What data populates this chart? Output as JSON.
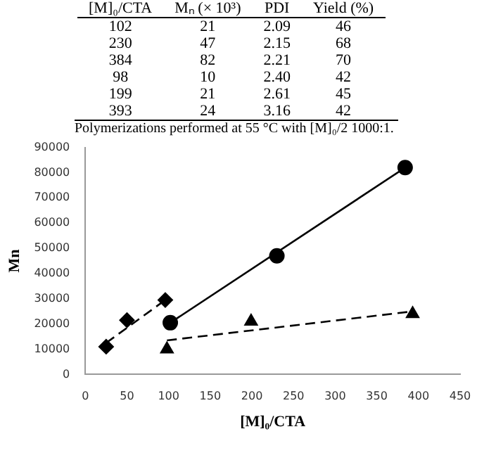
{
  "chart_data": {
    "type": "scatter",
    "xlabel": "[M]₀/CTA",
    "ylabel": "Mn",
    "xlim": [
      0,
      450
    ],
    "xticks": [
      0,
      50,
      100,
      150,
      200,
      250,
      300,
      350,
      400,
      450
    ],
    "ylim": [
      0,
      90000
    ],
    "yticks": [
      0,
      10000,
      20000,
      30000,
      40000,
      50000,
      60000,
      70000,
      80000,
      90000
    ],
    "grid": false,
    "legend": false,
    "annotations": [
      "[M]₀/CTA\tMₙ (× 10³)\tPDI\tYield (%)",
      "102\t21\t2.09\t46",
      "230\t47\t2.15\t68",
      "384\t82\t2.21\t70",
      "98\t10\t2.40\t42",
      "199\t21\t2.61\t45",
      "393\t24\t3.16\t42",
      "Polymerizations performed at 55 °C with [M]₀/2 1000:1."
    ],
    "series": [
      {
        "type": "scatter",
        "color": "#000000",
        "marker": "diamond",
        "x": [
          25,
          50,
          96
        ],
        "values": [
          11000,
          21500,
          29500
        ]
      },
      {
        "type": "scatter",
        "color": "#000000",
        "marker": "circle",
        "x": [
          102,
          230,
          384
        ],
        "values": [
          20500,
          47000,
          82000
        ]
      },
      {
        "type": "scatter",
        "color": "#000000",
        "marker": "triangle",
        "x": [
          98,
          199,
          393
        ],
        "values": [
          10000,
          21000,
          24000
        ]
      },
      {
        "type": "line",
        "color": "#000000",
        "marker": "none",
        "line_style": "dashed",
        "x": [
          25,
          96
        ],
        "values": [
          12500,
          29500
        ]
      },
      {
        "type": "line",
        "color": "#000000",
        "marker": "none",
        "line_style": "solid",
        "x": [
          102,
          384
        ],
        "values": [
          20500,
          82000
        ]
      },
      {
        "type": "line",
        "color": "#000000",
        "marker": "none",
        "line_style": "dashed",
        "x": [
          98,
          393
        ],
        "values": [
          13500,
          25000
        ]
      }
    ]
  }
}
